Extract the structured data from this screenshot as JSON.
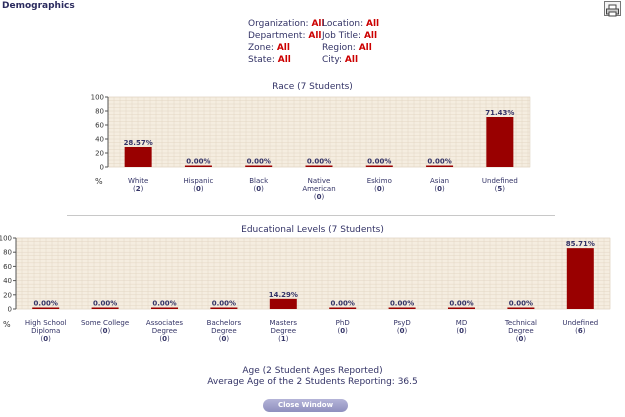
{
  "page": {
    "title": "Demographics",
    "print_icon": "printer-icon"
  },
  "filters": [
    {
      "label": "Organization:",
      "value": "All"
    },
    {
      "label": "Location:",
      "value": "All"
    },
    {
      "label": "Department:",
      "value": "All"
    },
    {
      "label": "Job Title:",
      "value": "All"
    },
    {
      "label": "Zone:",
      "value": "All"
    },
    {
      "label": "Region:",
      "value": "All"
    },
    {
      "label": "State:",
      "value": "All"
    },
    {
      "label": "City:",
      "value": "All"
    }
  ],
  "chart_data": [
    {
      "type": "bar",
      "title": "Race (7 Students)",
      "ylabel": "%",
      "ylim": [
        0,
        100
      ],
      "yticks": [
        "0",
        "20",
        "40",
        "60",
        "80",
        "100"
      ],
      "grid": true,
      "bar_color": "#990000",
      "categories": [
        {
          "label": [
            "White"
          ],
          "count": "2"
        },
        {
          "label": [
            "Hispanic"
          ],
          "count": "0"
        },
        {
          "label": [
            "Black"
          ],
          "count": "0"
        },
        {
          "label": [
            "Native",
            "American"
          ],
          "count": "0"
        },
        {
          "label": [
            "Eskimo"
          ],
          "count": "0"
        },
        {
          "label": [
            "Asian"
          ],
          "count": "0"
        },
        {
          "label": [
            "Undefined"
          ],
          "count": "5"
        }
      ],
      "values": [
        28.57,
        0,
        0,
        0,
        0,
        0,
        71.43
      ],
      "value_labels": [
        "28.57%",
        "0.00%",
        "0.00%",
        "0.00%",
        "0.00%",
        "0.00%",
        "71.43%"
      ]
    },
    {
      "type": "bar",
      "title": "Educational Levels (7 Students)",
      "ylabel": "%",
      "ylim": [
        0,
        100
      ],
      "yticks": [
        "0",
        "20",
        "40",
        "60",
        "80",
        "100"
      ],
      "grid": true,
      "bar_color": "#990000",
      "categories": [
        {
          "label": [
            "High School",
            "Diploma"
          ],
          "count": "0"
        },
        {
          "label": [
            "Some College"
          ],
          "count": "0"
        },
        {
          "label": [
            "Associates",
            "Degree"
          ],
          "count": "0"
        },
        {
          "label": [
            "Bachelors",
            "Degree"
          ],
          "count": "0"
        },
        {
          "label": [
            "Masters",
            "Degree"
          ],
          "count": "1"
        },
        {
          "label": [
            "PhD"
          ],
          "count": "0"
        },
        {
          "label": [
            "PsyD"
          ],
          "count": "0"
        },
        {
          "label": [
            "MD"
          ],
          "count": "0"
        },
        {
          "label": [
            "Technical",
            "Degree"
          ],
          "count": "0"
        },
        {
          "label": [
            "Undefined"
          ],
          "count": "6"
        }
      ],
      "values": [
        0,
        0,
        0,
        0,
        14.29,
        0,
        0,
        0,
        0,
        85.71
      ],
      "value_labels": [
        "0.00%",
        "0.00%",
        "0.00%",
        "0.00%",
        "14.29%",
        "0.00%",
        "0.00%",
        "0.00%",
        "0.00%",
        "85.71%"
      ]
    }
  ],
  "age": {
    "line1": "Age (2 Student Ages Reported)",
    "line2": "Average Age of the 2 Students Reporting: 36.5"
  },
  "close_button": "Close Window"
}
